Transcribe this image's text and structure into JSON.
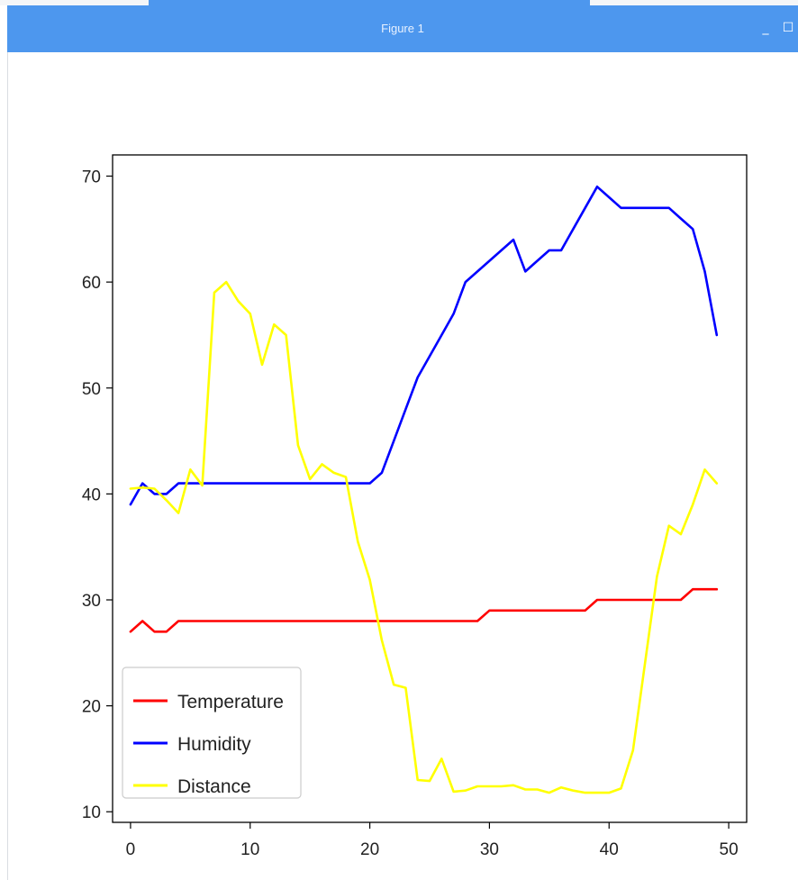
{
  "window": {
    "title": "Figure 1",
    "minimize_glyph": "_",
    "maximize_glyph": "☐"
  },
  "chart_data": {
    "type": "line",
    "title": "",
    "xlabel": "",
    "ylabel": "",
    "xlim": [
      -1.5,
      51.5
    ],
    "ylim": [
      9,
      72
    ],
    "grid": false,
    "legend_position": "lower-left",
    "x_ticks": [
      0,
      10,
      20,
      30,
      40,
      50
    ],
    "y_ticks": [
      10,
      20,
      30,
      40,
      50,
      60,
      70
    ],
    "series": [
      {
        "name": "Temperature",
        "color": "#ff0000",
        "x": [
          0,
          1,
          2,
          3,
          4,
          5,
          6,
          7,
          8,
          9,
          10,
          11,
          12,
          13,
          14,
          15,
          16,
          17,
          18,
          19,
          20,
          21,
          22,
          23,
          24,
          25,
          26,
          27,
          28,
          29,
          30,
          31,
          32,
          33,
          34,
          35,
          36,
          37,
          38,
          39,
          40,
          41,
          42,
          43,
          44,
          45,
          46,
          47,
          48,
          49
        ],
        "values": [
          27,
          28,
          27,
          27,
          28,
          28,
          28,
          28,
          28,
          28,
          28,
          28,
          28,
          28,
          28,
          28,
          28,
          28,
          28,
          28,
          28,
          28,
          28,
          28,
          28,
          28,
          28,
          28,
          28,
          28,
          29,
          29,
          29,
          29,
          29,
          29,
          29,
          29,
          29,
          30,
          30,
          30,
          30,
          30,
          30,
          30,
          30,
          31,
          31,
          31
        ]
      },
      {
        "name": "Humidity",
        "color": "#0000ff",
        "x": [
          0,
          1,
          2,
          3,
          4,
          5,
          6,
          7,
          8,
          9,
          10,
          11,
          12,
          13,
          14,
          15,
          16,
          17,
          18,
          19,
          20,
          21,
          22,
          23,
          24,
          25,
          26,
          27,
          28,
          29,
          30,
          31,
          32,
          33,
          34,
          35,
          36,
          37,
          38,
          39,
          40,
          41,
          42,
          43,
          44,
          45,
          46,
          47,
          48,
          49
        ],
        "values": [
          39,
          41,
          40,
          40,
          41,
          41,
          41,
          41,
          41,
          41,
          41,
          41,
          41,
          41,
          41,
          41,
          41,
          41,
          41,
          41,
          41,
          42,
          45,
          48,
          51,
          53,
          55,
          57,
          60,
          61,
          62,
          63,
          64,
          61,
          62,
          63,
          63,
          65,
          67,
          69,
          68,
          67,
          67,
          67,
          67,
          67,
          66,
          65,
          61,
          55
        ]
      },
      {
        "name": "Distance",
        "color": "#ffff00",
        "x": [
          0,
          1,
          2,
          3,
          4,
          5,
          6,
          7,
          8,
          9,
          10,
          11,
          12,
          13,
          14,
          15,
          16,
          17,
          18,
          19,
          20,
          21,
          22,
          23,
          24,
          25,
          26,
          27,
          28,
          29,
          30,
          31,
          32,
          33,
          34,
          35,
          36,
          37,
          38,
          39,
          40,
          41,
          42,
          43,
          44,
          45,
          46,
          47,
          48,
          49
        ],
        "values": [
          40.5,
          40.6,
          40.5,
          39.4,
          38.2,
          42.3,
          40.8,
          59,
          60,
          58.2,
          57,
          52.2,
          56,
          55,
          44.6,
          41.4,
          42.8,
          42,
          41.6,
          35.5,
          31.9,
          26.2,
          22,
          21.7,
          13,
          12.9,
          15,
          11.9,
          12,
          12.4,
          12.4,
          12.4,
          12.5,
          12.1,
          12.1,
          11.8,
          12.3,
          12,
          11.8,
          11.8,
          11.8,
          12.2,
          15.8,
          24,
          32.2,
          37,
          36.2,
          39,
          42.3,
          41
        ]
      }
    ]
  }
}
